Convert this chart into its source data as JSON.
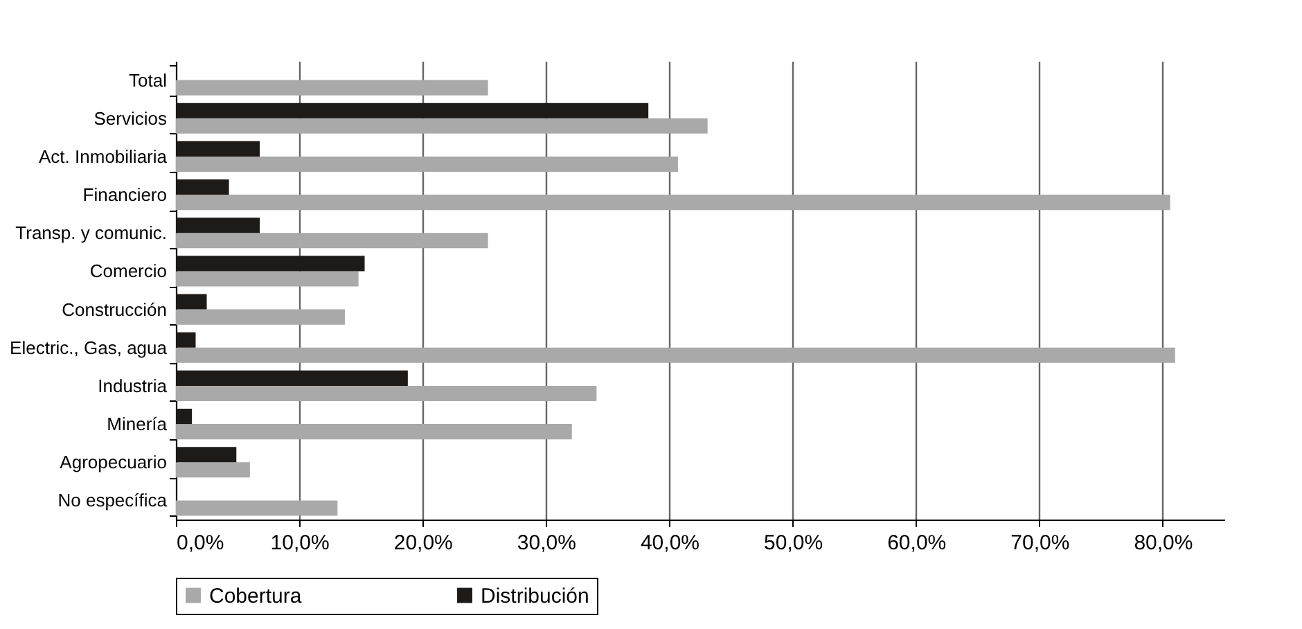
{
  "chart_data": {
    "type": "bar",
    "orientation": "horizontal",
    "categories": [
      "Total",
      "Servicios",
      "Act. Inmobiliaria",
      "Financiero",
      "Transp. y comunic.",
      "Comercio",
      "Construcción",
      "Electric., Gas, agua",
      "Industria",
      "Minería",
      "Agropecuario",
      "No específica"
    ],
    "series": [
      {
        "name": "Cobertura",
        "color": "#a9a9a9",
        "values": [
          25.3,
          43.1,
          40.7,
          80.6,
          25.3,
          14.8,
          13.7,
          81.0,
          34.1,
          32.1,
          6.0,
          13.1
        ]
      },
      {
        "name": "Distribución",
        "color": "#1e1a18",
        "values": [
          null,
          38.3,
          6.8,
          4.3,
          6.8,
          15.3,
          2.5,
          1.6,
          18.8,
          1.3,
          4.9,
          null
        ]
      }
    ],
    "xlim": [
      0,
      85
    ],
    "xticks": [
      {
        "value": 0,
        "label": "0,0%"
      },
      {
        "value": 10,
        "label": "10,0%"
      },
      {
        "value": 20,
        "label": "20,0%"
      },
      {
        "value": 30,
        "label": "30,0%"
      },
      {
        "value": 40,
        "label": "40,0%"
      },
      {
        "value": 50,
        "label": "50,0%"
      },
      {
        "value": 60,
        "label": "60,0%"
      },
      {
        "value": 70,
        "label": "70,0%"
      },
      {
        "value": 80,
        "label": "80,0%"
      }
    ],
    "grid": "x",
    "legend": "bottom"
  }
}
